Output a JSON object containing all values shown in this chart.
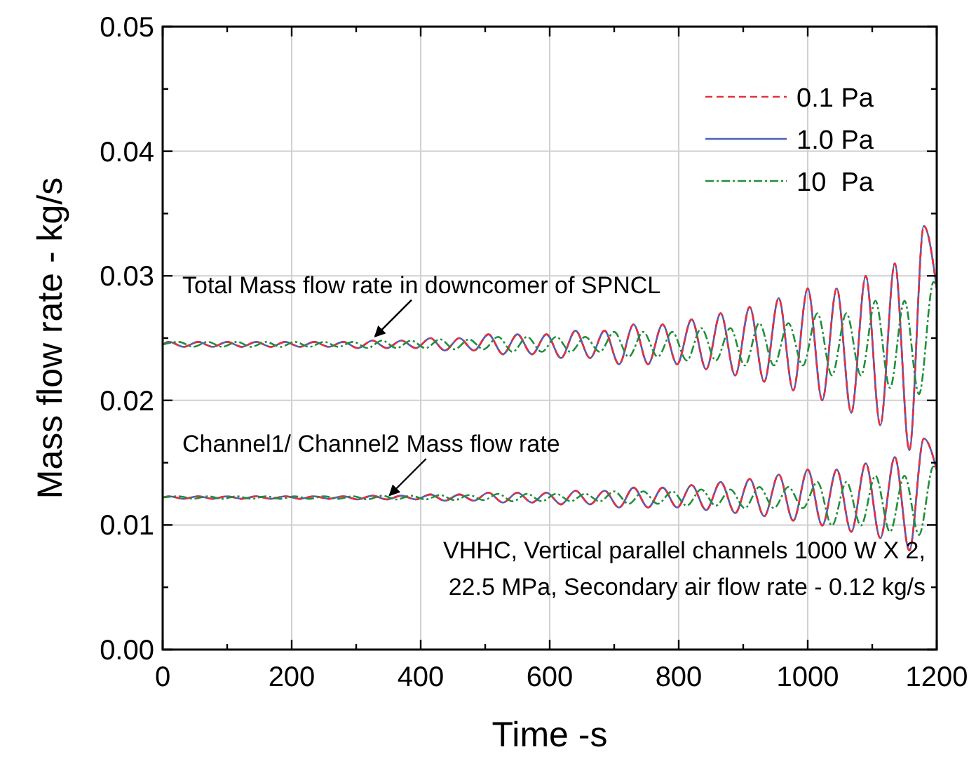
{
  "chart_data": {
    "type": "line",
    "xlabel": "Time -s",
    "ylabel": "Mass flow rate - kg/s",
    "xlim": [
      0,
      1200
    ],
    "ylim": [
      0,
      0.05
    ],
    "xticks": [
      0,
      {
        "value": 100,
        "label": null
      },
      200,
      {
        "value": 300,
        "label": null
      },
      400,
      {
        "value": 500,
        "label": null
      },
      600,
      {
        "value": 700,
        "label": null
      },
      800,
      {
        "value": 900,
        "label": null
      },
      1000,
      {
        "value": 1100,
        "label": null
      },
      1200
    ],
    "yticks": [
      {
        "value": 0,
        "label": "0.00"
      },
      {
        "value": 0.005,
        "label": null
      },
      {
        "value": 0.01,
        "label": "0.01"
      },
      {
        "value": 0.015,
        "label": null
      },
      {
        "value": 0.02,
        "label": "0.02"
      },
      {
        "value": 0.025,
        "label": null
      },
      {
        "value": 0.03,
        "label": "0.03"
      },
      {
        "value": 0.035,
        "label": null
      },
      {
        "value": 0.04,
        "label": "0.04"
      },
      {
        "value": 0.045,
        "label": null
      },
      {
        "value": 0.05,
        "label": "0.05"
      }
    ],
    "grid": true,
    "legend": "top right",
    "annotations": [
      {
        "text": "Total Mass flow rate in downcomer of SPNCL",
        "x": 325,
        "y": 0.0248
      },
      {
        "text": "Channel1/ Channel2 Mass flow rate",
        "x": 347.5,
        "y": 0.01205
      },
      "VHHC, Vertical parallel channels 1000 W X 2,",
      "22.5 MPa, Secondary air flow rate - 0.12 kg/s"
    ],
    "series": [
      {
        "name": "1.0 Pa",
        "color": "#4a5fc1",
        "line_style": "solid",
        "x": [
          0,
          10,
          32.5,
          55,
          77.5,
          100,
          122.5,
          145,
          167.5,
          190,
          212.5,
          235,
          257.5,
          280,
          302.5,
          325,
          347.5,
          370,
          392.5,
          415,
          437.5,
          460,
          482.5,
          505,
          527.5,
          550,
          572.5,
          595,
          617.5,
          640,
          662.5,
          685,
          707.5,
          730,
          752.5,
          775,
          797.5,
          820,
          842.5,
          865,
          887.5,
          910,
          932.5,
          955,
          977.5,
          1000,
          1022.5,
          1045,
          1067.5,
          1090,
          1112.5,
          1135,
          1157.5,
          1180,
          1200
        ],
        "values": [
          0.0245,
          0.0247,
          0.0243,
          0.0247,
          0.0243,
          0.0247,
          0.0243,
          0.0247,
          0.0243,
          0.0247,
          0.0243,
          0.0247,
          0.0243,
          0.0247,
          0.0242,
          0.0248,
          0.0242,
          0.0248,
          0.0242,
          0.025,
          0.024,
          0.025,
          0.024,
          0.0253,
          0.0237,
          0.0253,
          0.0237,
          0.0253,
          0.0234,
          0.0256,
          0.0234,
          0.0256,
          0.0229,
          0.0261,
          0.0229,
          0.0261,
          0.0229,
          0.0265,
          0.0225,
          0.027,
          0.022,
          0.0275,
          0.0215,
          0.0282,
          0.0208,
          0.029,
          0.02,
          0.029,
          0.019,
          0.03,
          0.018,
          0.031,
          0.016,
          0.034,
          0.029
        ]
      },
      {
        "color": "#4a5fc1",
        "line_style": "solid",
        "x": [
          0,
          10,
          32.5,
          55,
          77.5,
          100,
          122.5,
          145,
          167.5,
          190,
          212.5,
          235,
          257.5,
          280,
          302.5,
          325,
          347.5,
          370,
          392.5,
          415,
          437.5,
          460,
          482.5,
          505,
          527.5,
          550,
          572.5,
          595,
          617.5,
          640,
          662.5,
          685,
          707.5,
          730,
          752.5,
          775,
          797.5,
          820,
          842.5,
          865,
          887.5,
          910,
          932.5,
          955,
          977.5,
          1000,
          1022.5,
          1045,
          1067.5,
          1090,
          1112.5,
          1135,
          1157.5,
          1180,
          1200
        ],
        "values": [
          0.0122,
          0.0123,
          0.0121,
          0.0123,
          0.0121,
          0.0123,
          0.0121,
          0.0123,
          0.0121,
          0.0123,
          0.0121,
          0.0123,
          0.0121,
          0.0123,
          0.01205,
          0.01235,
          0.01205,
          0.01235,
          0.01205,
          0.01245,
          0.01195,
          0.01245,
          0.01195,
          0.0126,
          0.0118,
          0.0126,
          0.0118,
          0.0126,
          0.01165,
          0.01275,
          0.01165,
          0.01275,
          0.0114,
          0.013,
          0.0114,
          0.013,
          0.0114,
          0.0132,
          0.0112,
          0.01345,
          0.01095,
          0.0137,
          0.0107,
          0.01405,
          0.01035,
          0.01445,
          0.00995,
          0.01445,
          0.00945,
          0.01495,
          0.00895,
          0.01545,
          0.00795,
          0.01695,
          0.01445
        ]
      },
      {
        "name": "0.1 Pa",
        "color": "#e8303c",
        "line_style": "dashed",
        "x": [
          0,
          10,
          32.5,
          55,
          77.5,
          100,
          122.5,
          145,
          167.5,
          190,
          212.5,
          235,
          257.5,
          280,
          302.5,
          325,
          347.5,
          370,
          392.5,
          415,
          437.5,
          460,
          482.5,
          505,
          527.5,
          550,
          572.5,
          595,
          617.5,
          640,
          662.5,
          685,
          707.5,
          730,
          752.5,
          775,
          797.5,
          820,
          842.5,
          865,
          887.5,
          910,
          932.5,
          955,
          977.5,
          1000,
          1022.5,
          1045,
          1067.5,
          1090,
          1112.5,
          1135,
          1157.5,
          1180,
          1200
        ],
        "values": [
          0.0245,
          0.0247,
          0.0243,
          0.0247,
          0.0243,
          0.0247,
          0.0243,
          0.0247,
          0.0243,
          0.0247,
          0.0243,
          0.0247,
          0.0243,
          0.0247,
          0.0242,
          0.0248,
          0.0242,
          0.0248,
          0.0242,
          0.025,
          0.024,
          0.025,
          0.024,
          0.0253,
          0.0237,
          0.0253,
          0.0237,
          0.0253,
          0.0234,
          0.0256,
          0.0234,
          0.0256,
          0.0229,
          0.0261,
          0.0229,
          0.0261,
          0.0229,
          0.0265,
          0.0225,
          0.027,
          0.022,
          0.0275,
          0.0215,
          0.0282,
          0.0208,
          0.029,
          0.02,
          0.029,
          0.019,
          0.03,
          0.018,
          0.031,
          0.016,
          0.034,
          0.029
        ]
      },
      {
        "color": "#e8303c",
        "line_style": "dashed",
        "x": [
          0,
          10,
          32.5,
          55,
          77.5,
          100,
          122.5,
          145,
          167.5,
          190,
          212.5,
          235,
          257.5,
          280,
          302.5,
          325,
          347.5,
          370,
          392.5,
          415,
          437.5,
          460,
          482.5,
          505,
          527.5,
          550,
          572.5,
          595,
          617.5,
          640,
          662.5,
          685,
          707.5,
          730,
          752.5,
          775,
          797.5,
          820,
          842.5,
          865,
          887.5,
          910,
          932.5,
          955,
          977.5,
          1000,
          1022.5,
          1045,
          1067.5,
          1090,
          1112.5,
          1135,
          1157.5,
          1180,
          1200
        ],
        "values": [
          0.0122,
          0.0123,
          0.0121,
          0.0123,
          0.0121,
          0.0123,
          0.0121,
          0.0123,
          0.0121,
          0.0123,
          0.0121,
          0.0123,
          0.0121,
          0.0123,
          0.01205,
          0.01235,
          0.01205,
          0.01235,
          0.01205,
          0.01245,
          0.01195,
          0.01245,
          0.01195,
          0.0126,
          0.0118,
          0.0126,
          0.0118,
          0.0126,
          0.01165,
          0.01275,
          0.01165,
          0.01275,
          0.0114,
          0.013,
          0.0114,
          0.013,
          0.0114,
          0.0132,
          0.0112,
          0.01345,
          0.01095,
          0.0137,
          0.0107,
          0.01405,
          0.01035,
          0.01445,
          0.00995,
          0.01445,
          0.00945,
          0.01495,
          0.00895,
          0.01545,
          0.00795,
          0.01695,
          0.01445
        ]
      },
      {
        "name": "10  Pa",
        "color": "#1f8f3a",
        "line_style": "dotted",
        "x": [
          0,
          25,
          47.5,
          70,
          92.5,
          115,
          137.5,
          160,
          182.5,
          205,
          227.5,
          250,
          272.5,
          295,
          317.5,
          340,
          362.5,
          385,
          407.5,
          430,
          452.5,
          475,
          497.5,
          520,
          542.5,
          565,
          587.5,
          610,
          632.5,
          655,
          677.5,
          700,
          722.5,
          745,
          767.5,
          790,
          812.5,
          835,
          857.5,
          880,
          902.5,
          925,
          947.5,
          970,
          992.5,
          1015,
          1037.5,
          1060,
          1082.5,
          1105,
          1127.5,
          1150,
          1172.5,
          1195,
          1200
        ],
        "values": [
          0.0245,
          0.0247,
          0.0243,
          0.0247,
          0.0243,
          0.0247,
          0.0243,
          0.0247,
          0.0243,
          0.0247,
          0.0243,
          0.0247,
          0.0243,
          0.0247,
          0.0242,
          0.0248,
          0.0242,
          0.0248,
          0.0242,
          0.0249,
          0.0241,
          0.0249,
          0.0241,
          0.0251,
          0.0239,
          0.0251,
          0.0239,
          0.0251,
          0.0239,
          0.0251,
          0.0239,
          0.0255,
          0.0235,
          0.0255,
          0.0235,
          0.0255,
          0.0232,
          0.0258,
          0.0232,
          0.0258,
          0.0228,
          0.0262,
          0.0228,
          0.0262,
          0.0228,
          0.027,
          0.022,
          0.027,
          0.022,
          0.028,
          0.021,
          0.028,
          0.0205,
          0.0295,
          0.0293
        ]
      },
      {
        "color": "#1f8f3a",
        "line_style": "dotted",
        "x": [
          0,
          25,
          47.5,
          70,
          92.5,
          115,
          137.5,
          160,
          182.5,
          205,
          227.5,
          250,
          272.5,
          295,
          317.5,
          340,
          362.5,
          385,
          407.5,
          430,
          452.5,
          475,
          497.5,
          520,
          542.5,
          565,
          587.5,
          610,
          632.5,
          655,
          677.5,
          700,
          722.5,
          745,
          767.5,
          790,
          812.5,
          835,
          857.5,
          880,
          902.5,
          925,
          947.5,
          970,
          992.5,
          1015,
          1037.5,
          1060,
          1082.5,
          1105,
          1127.5,
          1150,
          1172.5,
          1195,
          1200
        ],
        "values": [
          0.0122,
          0.0123,
          0.0121,
          0.0123,
          0.0121,
          0.0123,
          0.0121,
          0.0123,
          0.0121,
          0.0123,
          0.0121,
          0.0123,
          0.0121,
          0.0123,
          0.01205,
          0.01235,
          0.01205,
          0.01235,
          0.01205,
          0.0124,
          0.012,
          0.0124,
          0.012,
          0.0125,
          0.0119,
          0.0125,
          0.0119,
          0.0125,
          0.0119,
          0.0125,
          0.0119,
          0.0127,
          0.0117,
          0.0127,
          0.0117,
          0.0127,
          0.01155,
          0.01285,
          0.01155,
          0.01285,
          0.01135,
          0.01305,
          0.01135,
          0.01305,
          0.01135,
          0.01345,
          0.00995,
          0.01345,
          0.00995,
          0.01395,
          0.00945,
          0.01395,
          0.0092,
          0.0147,
          0.0146
        ]
      }
    ]
  }
}
